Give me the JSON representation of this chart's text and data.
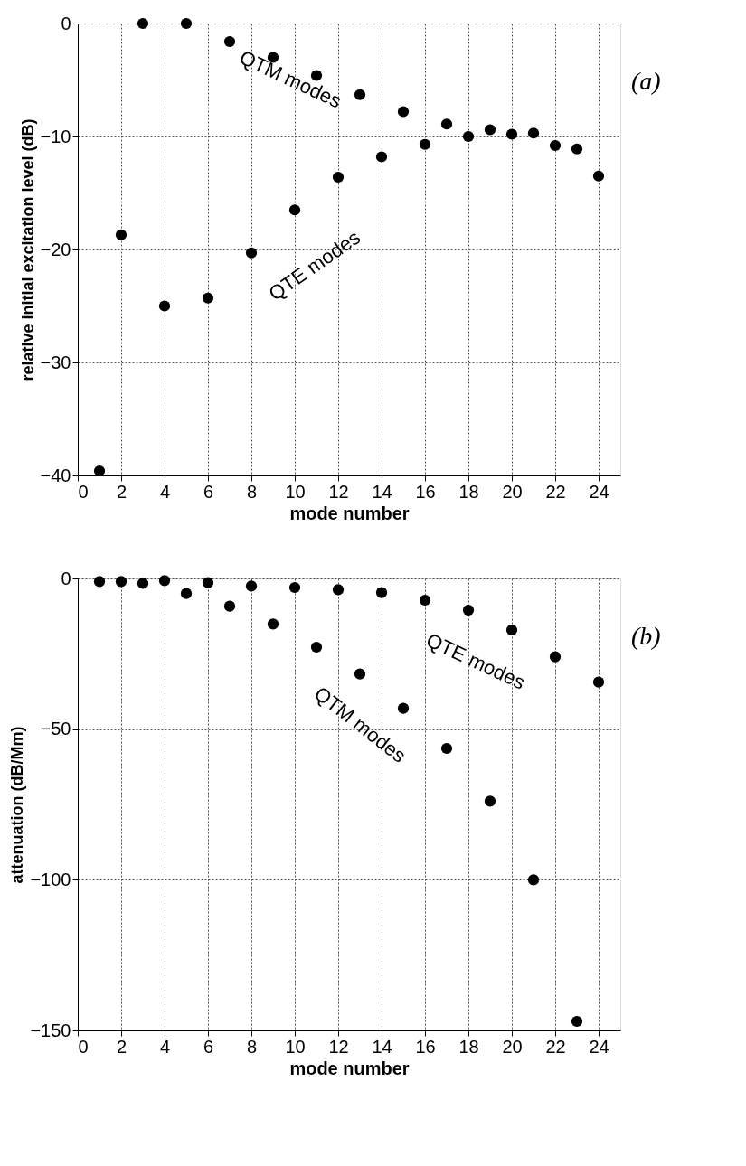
{
  "chart_data": [
    {
      "type": "scatter",
      "xlabel": "mode number",
      "ylabel": "relative initial excitation level (dB)",
      "x": [
        1,
        2,
        3,
        4,
        5,
        6,
        7,
        8,
        9,
        10,
        11,
        12,
        13,
        14,
        15,
        16,
        17,
        18,
        19,
        20,
        21,
        22,
        23,
        24
      ],
      "series": [
        {
          "color": "#000000",
          "values": [
            -39.6,
            -18.7,
            0,
            -25,
            0,
            -24.3,
            -1.6,
            -20.3,
            -3,
            -16.5,
            -4.6,
            -13.6,
            -6.3,
            -11.8,
            -7.8,
            -10.7,
            -8.9,
            -10,
            -9.4,
            -9.8,
            -9.7,
            -10.8,
            -11.1,
            -13.5
          ]
        }
      ],
      "xlim": [
        0,
        25
      ],
      "xticks": [
        0,
        2,
        4,
        6,
        8,
        10,
        12,
        14,
        16,
        18,
        20,
        22,
        24
      ],
      "ylim": [
        -40,
        0
      ],
      "yticks": [
        -40,
        -30,
        -20,
        -10,
        0
      ],
      "grid": true,
      "marker": "circle",
      "annotations": [
        "QTM modes",
        "QTE modes",
        "(a)"
      ]
    },
    {
      "type": "scatter",
      "xlabel": "mode number",
      "ylabel": "attenuation  (dB/Mm)",
      "x": [
        1,
        2,
        3,
        4,
        5,
        6,
        7,
        8,
        9,
        10,
        11,
        12,
        13,
        14,
        15,
        16,
        17,
        18,
        19,
        20,
        21,
        22,
        23,
        24
      ],
      "series": [
        {
          "color": "#000000",
          "values": [
            -1,
            -1,
            -1.6,
            -0.7,
            -5,
            -1.4,
            -9.2,
            -2.5,
            -15.1,
            -3,
            -22.8,
            -3.7,
            -31.7,
            -4.7,
            -43.1,
            -7.2,
            -56.4,
            -10.5,
            -73.9,
            -17.1,
            -100,
            -26,
            -147,
            -34.4
          ]
        }
      ],
      "xlim": [
        0,
        25
      ],
      "xticks": [
        0,
        2,
        4,
        6,
        8,
        10,
        12,
        14,
        16,
        18,
        20,
        22,
        24
      ],
      "ylim": [
        -150,
        0
      ],
      "yticks": [
        -150,
        -100,
        -50,
        0
      ],
      "grid": true,
      "marker": "circle",
      "annotations": [
        "QTE modes",
        "QTM modes",
        "(b)"
      ]
    }
  ]
}
